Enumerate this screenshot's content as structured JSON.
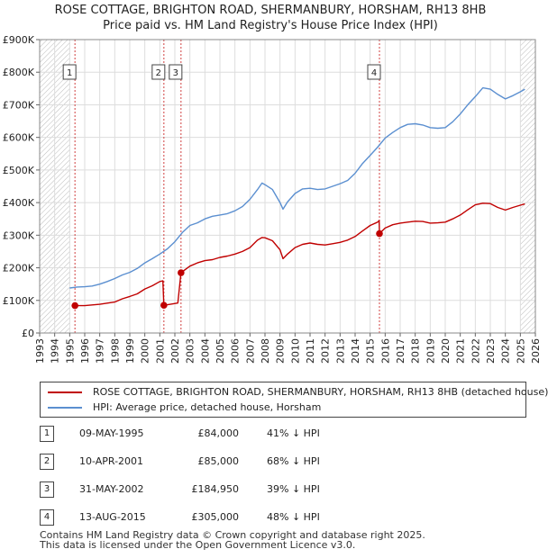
{
  "title_line1": "ROSE COTTAGE, BRIGHTON ROAD, SHERMANBURY, HORSHAM, RH13 8HB",
  "title_line2": "Price paid vs. HM Land Registry's House Price Index (HPI)",
  "colors": {
    "property": "#c00000",
    "hpi": "#5b8fd0",
    "grid": "#dddddd",
    "marker": "#c00000"
  },
  "legend": [
    {
      "label": "ROSE COTTAGE, BRIGHTON ROAD, SHERMANBURY, HORSHAM, RH13 8HB (detached house)",
      "color": "#c00000"
    },
    {
      "label": "HPI: Average price, detached house, Horsham",
      "color": "#5b8fd0"
    }
  ],
  "sales": [
    {
      "num": "1",
      "date": "09-MAY-1995",
      "price": "£84,000",
      "hpi": "41% ↓ HPI"
    },
    {
      "num": "2",
      "date": "10-APR-2001",
      "price": "£85,000",
      "hpi": "68% ↓ HPI"
    },
    {
      "num": "3",
      "date": "31-MAY-2002",
      "price": "£184,950",
      "hpi": "39% ↓ HPI"
    },
    {
      "num": "4",
      "date": "13-AUG-2015",
      "price": "£305,000",
      "hpi": "48% ↓ HPI"
    }
  ],
  "footer_line1": "Contains HM Land Registry data © Crown copyright and database right 2025.",
  "footer_line2": "This data is licensed under the Open Government Licence v3.0.",
  "chart_data": {
    "type": "line",
    "title": "ROSE COTTAGE, BRIGHTON ROAD, SHERMANBURY, HORSHAM, RH13 8HB",
    "subtitle": "Price paid vs. HM Land Registry's House Price Index (HPI)",
    "xlabel": "",
    "ylabel": "",
    "xlim": [
      1993,
      2026
    ],
    "ylim": [
      0,
      900000
    ],
    "grid": true,
    "x_ticks": [
      1993,
      1994,
      1995,
      1996,
      1997,
      1998,
      1999,
      2000,
      2001,
      2002,
      2003,
      2004,
      2005,
      2006,
      2007,
      2008,
      2009,
      2010,
      2011,
      2012,
      2013,
      2014,
      2015,
      2016,
      2017,
      2018,
      2019,
      2020,
      2021,
      2022,
      2023,
      2024,
      2025,
      2026
    ],
    "y_ticks": [
      {
        "value": 0,
        "label": "£0"
      },
      {
        "value": 100000,
        "label": "£100K"
      },
      {
        "value": 200000,
        "label": "£200K"
      },
      {
        "value": 300000,
        "label": "£300K"
      },
      {
        "value": 400000,
        "label": "£400K"
      },
      {
        "value": 500000,
        "label": "£500K"
      },
      {
        "value": 600000,
        "label": "£600K"
      },
      {
        "value": 700000,
        "label": "£700K"
      },
      {
        "value": 800000,
        "label": "£800K"
      },
      {
        "value": 900000,
        "label": "£900K"
      }
    ],
    "hatched_ranges": [
      [
        1993,
        1995.0
      ],
      [
        2025.0,
        2026
      ]
    ],
    "series": [
      {
        "name": "ROSE COTTAGE, BRIGHTON ROAD, SHERMANBURY, HORSHAM, RH13 8HB (detached house)",
        "color": "#c00000",
        "points": [
          [
            1995.35,
            84000
          ],
          [
            1996.0,
            84000
          ],
          [
            1997.0,
            88000
          ],
          [
            1998.0,
            95000
          ],
          [
            1998.5,
            105000
          ],
          [
            1999.0,
            112000
          ],
          [
            1999.5,
            120000
          ],
          [
            2000.0,
            135000
          ],
          [
            2000.5,
            145000
          ],
          [
            2001.0,
            158000
          ],
          [
            2001.2,
            160000
          ],
          [
            2001.27,
            85000
          ],
          [
            2001.7,
            88000
          ],
          [
            2002.2,
            92000
          ],
          [
            2002.41,
            184950
          ],
          [
            2003.0,
            205000
          ],
          [
            2003.5,
            215000
          ],
          [
            2004.0,
            222000
          ],
          [
            2004.5,
            225000
          ],
          [
            2005.0,
            232000
          ],
          [
            2005.5,
            236000
          ],
          [
            2006.0,
            242000
          ],
          [
            2006.5,
            250000
          ],
          [
            2007.0,
            262000
          ],
          [
            2007.5,
            285000
          ],
          [
            2007.8,
            293000
          ],
          [
            2008.0,
            292000
          ],
          [
            2008.5,
            283000
          ],
          [
            2009.0,
            255000
          ],
          [
            2009.2,
            228000
          ],
          [
            2009.5,
            242000
          ],
          [
            2010.0,
            262000
          ],
          [
            2010.5,
            272000
          ],
          [
            2011.0,
            276000
          ],
          [
            2011.5,
            272000
          ],
          [
            2012.0,
            270000
          ],
          [
            2012.5,
            274000
          ],
          [
            2013.0,
            278000
          ],
          [
            2013.5,
            285000
          ],
          [
            2014.0,
            296000
          ],
          [
            2014.5,
            313000
          ],
          [
            2015.0,
            330000
          ],
          [
            2015.5,
            340000
          ],
          [
            2015.6,
            345000
          ],
          [
            2015.62,
            305000
          ],
          [
            2016.0,
            322000
          ],
          [
            2016.5,
            332000
          ],
          [
            2017.0,
            337000
          ],
          [
            2017.5,
            340000
          ],
          [
            2018.0,
            343000
          ],
          [
            2018.5,
            342000
          ],
          [
            2019.0,
            337000
          ],
          [
            2019.5,
            338000
          ],
          [
            2020.0,
            340000
          ],
          [
            2020.5,
            350000
          ],
          [
            2021.0,
            362000
          ],
          [
            2021.5,
            378000
          ],
          [
            2022.0,
            393000
          ],
          [
            2022.5,
            398000
          ],
          [
            2023.0,
            397000
          ],
          [
            2023.5,
            385000
          ],
          [
            2024.0,
            377000
          ],
          [
            2024.5,
            385000
          ],
          [
            2025.0,
            392000
          ],
          [
            2025.3,
            396000
          ]
        ]
      },
      {
        "name": "HPI: Average price, detached house, Horsham",
        "color": "#5b8fd0",
        "points": [
          [
            1995.0,
            138000
          ],
          [
            1995.5,
            141000
          ],
          [
            1996.0,
            142000
          ],
          [
            1996.5,
            144000
          ],
          [
            1997.0,
            150000
          ],
          [
            1997.5,
            158000
          ],
          [
            1998.0,
            167000
          ],
          [
            1998.5,
            178000
          ],
          [
            1999.0,
            186000
          ],
          [
            1999.5,
            198000
          ],
          [
            2000.0,
            215000
          ],
          [
            2000.5,
            228000
          ],
          [
            2001.0,
            242000
          ],
          [
            2001.5,
            258000
          ],
          [
            2002.0,
            280000
          ],
          [
            2002.5,
            308000
          ],
          [
            2003.0,
            330000
          ],
          [
            2003.5,
            338000
          ],
          [
            2004.0,
            350000
          ],
          [
            2004.5,
            358000
          ],
          [
            2005.0,
            362000
          ],
          [
            2005.5,
            366000
          ],
          [
            2006.0,
            375000
          ],
          [
            2006.5,
            388000
          ],
          [
            2007.0,
            410000
          ],
          [
            2007.5,
            440000
          ],
          [
            2007.8,
            460000
          ],
          [
            2008.0,
            455000
          ],
          [
            2008.5,
            440000
          ],
          [
            2009.0,
            400000
          ],
          [
            2009.2,
            380000
          ],
          [
            2009.5,
            402000
          ],
          [
            2010.0,
            428000
          ],
          [
            2010.5,
            442000
          ],
          [
            2011.0,
            444000
          ],
          [
            2011.5,
            440000
          ],
          [
            2012.0,
            442000
          ],
          [
            2012.5,
            450000
          ],
          [
            2013.0,
            458000
          ],
          [
            2013.5,
            468000
          ],
          [
            2014.0,
            490000
          ],
          [
            2014.5,
            520000
          ],
          [
            2015.0,
            545000
          ],
          [
            2015.5,
            570000
          ],
          [
            2016.0,
            598000
          ],
          [
            2016.5,
            615000
          ],
          [
            2017.0,
            630000
          ],
          [
            2017.5,
            640000
          ],
          [
            2018.0,
            642000
          ],
          [
            2018.5,
            638000
          ],
          [
            2019.0,
            630000
          ],
          [
            2019.5,
            628000
          ],
          [
            2020.0,
            630000
          ],
          [
            2020.5,
            648000
          ],
          [
            2021.0,
            672000
          ],
          [
            2021.5,
            700000
          ],
          [
            2022.0,
            725000
          ],
          [
            2022.5,
            752000
          ],
          [
            2023.0,
            748000
          ],
          [
            2023.5,
            732000
          ],
          [
            2024.0,
            718000
          ],
          [
            2024.5,
            728000
          ],
          [
            2025.0,
            740000
          ],
          [
            2025.3,
            748000
          ]
        ]
      }
    ],
    "sale_markers": [
      {
        "num": "1",
        "x": 1995.35,
        "y": 84000
      },
      {
        "num": "2",
        "x": 2001.27,
        "y": 85000
      },
      {
        "num": "3",
        "x": 2002.41,
        "y": 184950
      },
      {
        "num": "4",
        "x": 2015.62,
        "y": 305000
      }
    ]
  }
}
